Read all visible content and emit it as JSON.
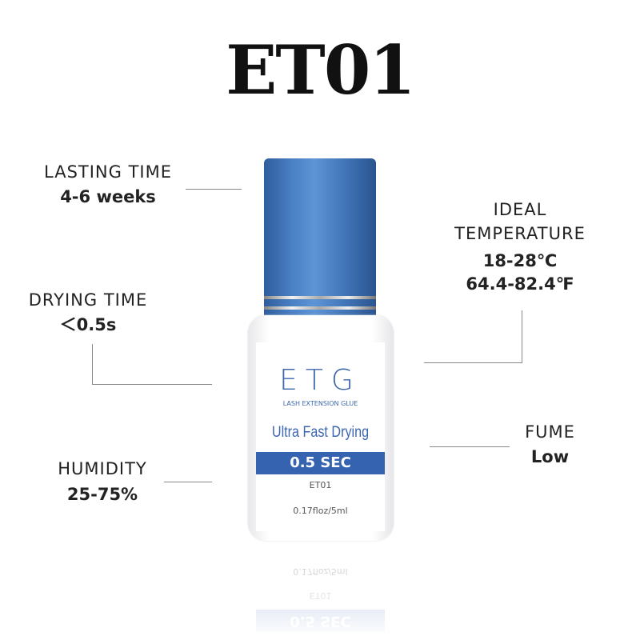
{
  "title": "ET01",
  "specs": {
    "lasting": {
      "label": "LASTING TIME",
      "value": "4-6 weeks"
    },
    "drying": {
      "label": "DRYING TIME",
      "value": "＜0.5s"
    },
    "humidity": {
      "label": "HUMIDITY",
      "value": "25-75%"
    },
    "temperature": {
      "label1": "IDEAL",
      "label2": "TEMPERATURE",
      "value1": "18-28℃",
      "value2": "64.4-82.4℉"
    },
    "fume": {
      "label": "FUME",
      "value": "Low"
    }
  },
  "bottle": {
    "brand": "ETG",
    "subtitle": "LASH EXTENSION GLUE",
    "tagline": "Ultra Fast Drying",
    "speed": "0.5 SEC",
    "model": "ET01",
    "volume": "0.17floz/5ml",
    "cap_color": "#4a80c4",
    "label_accent": "#3563b0"
  }
}
